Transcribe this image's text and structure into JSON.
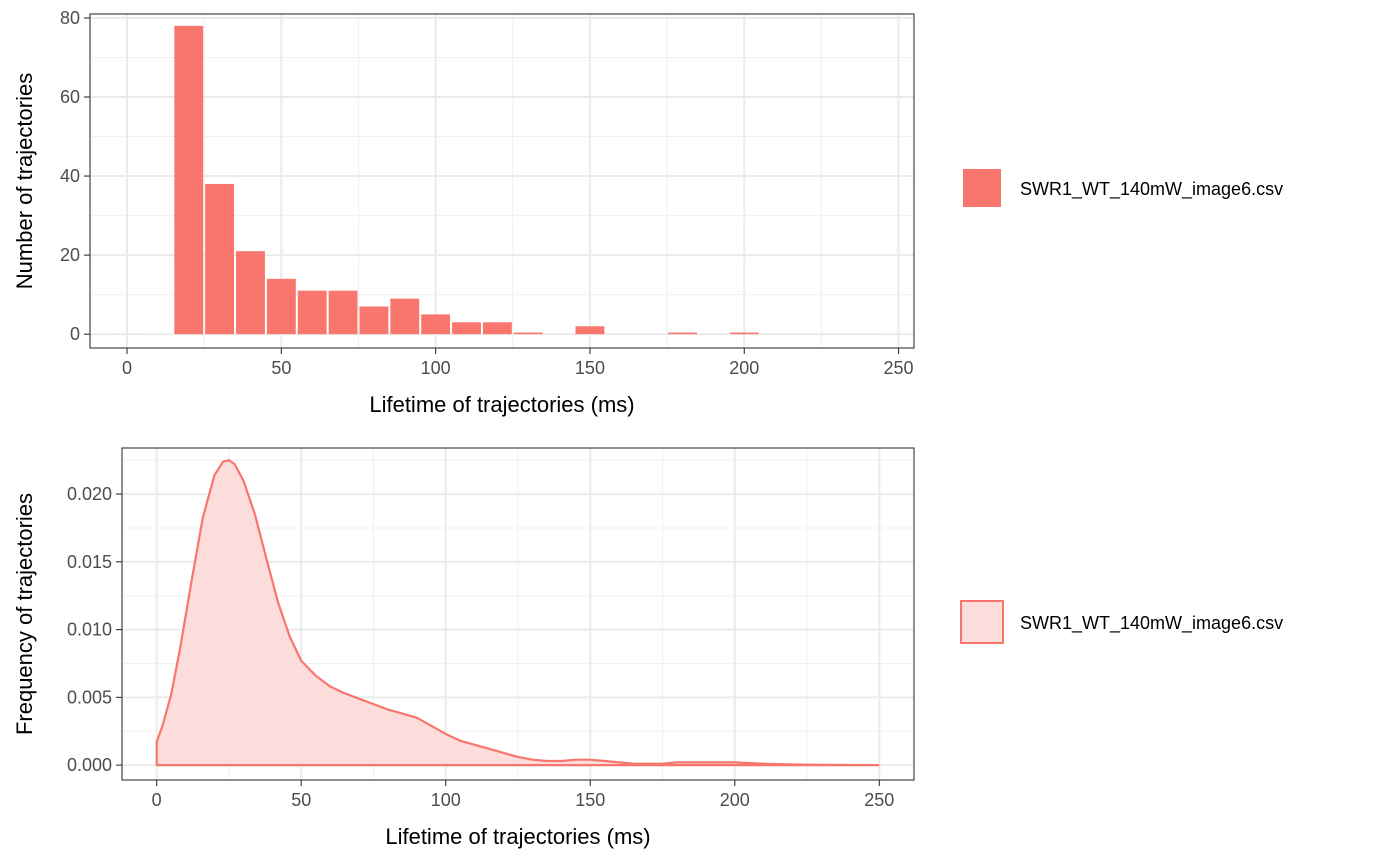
{
  "chart_data": [
    {
      "type": "bar",
      "xlabel": "Lifetime of trajectories (ms)",
      "ylabel": "Number of trajectories",
      "xlim": [
        -12,
        255
      ],
      "ylim": [
        -3.5,
        81
      ],
      "xticks": [
        0,
        50,
        100,
        150,
        200,
        250
      ],
      "yticks": [
        0,
        20,
        40,
        60,
        80
      ],
      "grid": true,
      "legend_position": "right",
      "bin_width": 10,
      "bins_x": [
        0,
        20,
        30,
        40,
        50,
        60,
        70,
        80,
        90,
        100,
        110,
        120,
        130,
        140,
        150,
        160,
        170,
        180,
        190,
        200,
        210,
        220,
        230,
        240
      ],
      "series": [
        {
          "name": "SWR1_WT_140mW_image6.csv",
          "values": [
            0,
            78,
            38,
            21,
            14,
            11,
            11,
            7,
            9,
            5,
            3,
            3,
            0.4,
            0,
            2,
            0,
            0,
            0.4,
            0,
            0.4,
            0,
            0,
            0,
            0
          ]
        }
      ],
      "color": "#F8766D"
    },
    {
      "type": "area",
      "xlabel": "Lifetime of trajectories (ms)",
      "ylabel": "Frequency of trajectories",
      "xlim": [
        -12,
        262
      ],
      "ylim": [
        -0.0011,
        0.0234
      ],
      "xticks": [
        0,
        50,
        100,
        150,
        200,
        250
      ],
      "ytick_labels": [
        "0.000",
        "0.005",
        "0.010",
        "0.015",
        "0.020"
      ],
      "yticks": [
        0,
        0.005,
        0.01,
        0.015,
        0.02
      ],
      "grid": true,
      "legend_position": "right",
      "series": [
        {
          "name": "SWR1_WT_140mW_image6.csv",
          "x": [
            0,
            2,
            5,
            8,
            12,
            16,
            20,
            23,
            25,
            27,
            30,
            34,
            38,
            42,
            46,
            50,
            55,
            60,
            65,
            70,
            75,
            80,
            85,
            90,
            95,
            100,
            105,
            110,
            115,
            120,
            125,
            130,
            135,
            140,
            145,
            150,
            155,
            160,
            165,
            170,
            175,
            180,
            190,
            200,
            210,
            220,
            230,
            240,
            250
          ],
          "y": [
            0.0017,
            0.0029,
            0.0052,
            0.0085,
            0.0135,
            0.0183,
            0.0214,
            0.0224,
            0.0225,
            0.0222,
            0.021,
            0.0185,
            0.0152,
            0.012,
            0.0095,
            0.0077,
            0.0066,
            0.0058,
            0.0053,
            0.0049,
            0.0045,
            0.0041,
            0.0038,
            0.0035,
            0.0029,
            0.0023,
            0.0018,
            0.0015,
            0.0012,
            0.0009,
            0.0006,
            0.0004,
            0.0003,
            0.0003,
            0.0004,
            0.0004,
            0.0003,
            0.0002,
            0.0001,
            0.0001,
            0.0001,
            0.0002,
            0.0002,
            0.0002,
            0.0001,
            5e-05,
            2e-05,
            1e-05,
            0.0
          ]
        }
      ],
      "color": "#F8766D",
      "fill_color": "#FCDDDC"
    }
  ]
}
